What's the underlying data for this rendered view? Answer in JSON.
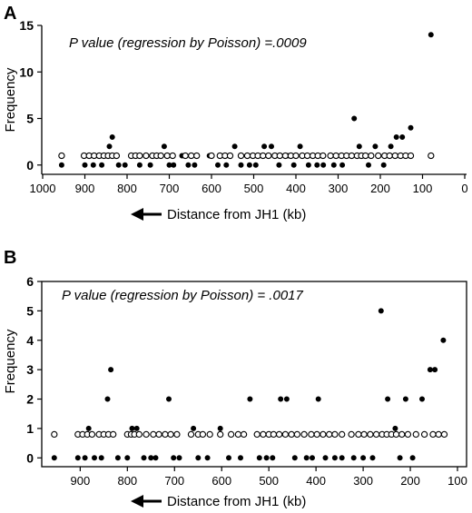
{
  "panels": [
    {
      "letter": "A",
      "annotation": "P  value (regression by Poisson) =.0009",
      "xlabel": "Distance from JH1 (kb)",
      "ylabel": "Frequency"
    },
    {
      "letter": "B",
      "annotation": "P  value (regression by Poisson) = .0017",
      "xlabel": "Distance from JH1 (kb)",
      "ylabel": "Frequency"
    }
  ],
  "chart_data": [
    {
      "type": "scatter",
      "xlabel": "Distance from JH1 (kb)",
      "ylabel": "Frequency",
      "annotation": "P  value (regression by Poisson) =.0009",
      "xlim": [
        1000,
        0
      ],
      "x_ticks": [
        1000,
        900,
        800,
        700,
        600,
        500,
        400,
        300,
        200,
        100,
        0
      ],
      "ylim": [
        -1,
        15
      ],
      "y_ticks": [
        0,
        5,
        10,
        15
      ],
      "series": [
        {
          "marker": "filled",
          "points": [
            [
              955,
              0
            ],
            [
              900,
              0
            ],
            [
              880,
              0
            ],
            [
              860,
              0
            ],
            [
              850,
              1
            ],
            [
              842,
              2
            ],
            [
              835,
              3
            ],
            [
              820,
              0
            ],
            [
              805,
              0
            ],
            [
              780,
              1
            ],
            [
              770,
              0
            ],
            [
              745,
              0
            ],
            [
              730,
              1
            ],
            [
              712,
              2
            ],
            [
              700,
              0
            ],
            [
              690,
              0
            ],
            [
              670,
              1
            ],
            [
              655,
              0
            ],
            [
              640,
              0
            ],
            [
              605,
              1
            ],
            [
              585,
              0
            ],
            [
              565,
              0
            ],
            [
              545,
              2
            ],
            [
              530,
              0
            ],
            [
              510,
              0
            ],
            [
              495,
              0
            ],
            [
              475,
              2
            ],
            [
              458,
              2
            ],
            [
              440,
              0
            ],
            [
              420,
              1
            ],
            [
              405,
              0
            ],
            [
              390,
              2
            ],
            [
              370,
              0
            ],
            [
              350,
              0
            ],
            [
              335,
              0
            ],
            [
              310,
              0
            ],
            [
              290,
              0
            ],
            [
              262,
              5
            ],
            [
              250,
              2
            ],
            [
              240,
              1
            ],
            [
              228,
              0
            ],
            [
              212,
              2
            ],
            [
              192,
              0
            ],
            [
              175,
              2
            ],
            [
              162,
              3
            ],
            [
              148,
              3
            ],
            [
              128,
              4
            ],
            [
              80,
              14
            ]
          ]
        },
        {
          "marker": "open",
          "points": [
            [
              955,
              1
            ],
            [
              902,
              1
            ],
            [
              890,
              1
            ],
            [
              878,
              1
            ],
            [
              866,
              1
            ],
            [
              855,
              1
            ],
            [
              845,
              1
            ],
            [
              835,
              1
            ],
            [
              825,
              1
            ],
            [
              790,
              1
            ],
            [
              780,
              1
            ],
            [
              770,
              1
            ],
            [
              755,
              1
            ],
            [
              740,
              1
            ],
            [
              730,
              1
            ],
            [
              720,
              1
            ],
            [
              705,
              1
            ],
            [
              692,
              1
            ],
            [
              662,
              1
            ],
            [
              648,
              1
            ],
            [
              635,
              1
            ],
            [
              600,
              1
            ],
            [
              580,
              1
            ],
            [
              568,
              1
            ],
            [
              556,
              1
            ],
            [
              530,
              1
            ],
            [
              515,
              1
            ],
            [
              502,
              1
            ],
            [
              490,
              1
            ],
            [
              478,
              1
            ],
            [
              465,
              1
            ],
            [
              450,
              1
            ],
            [
              438,
              1
            ],
            [
              425,
              1
            ],
            [
              412,
              1
            ],
            [
              400,
              1
            ],
            [
              385,
              1
            ],
            [
              373,
              1
            ],
            [
              360,
              1
            ],
            [
              348,
              1
            ],
            [
              336,
              1
            ],
            [
              318,
              1
            ],
            [
              305,
              1
            ],
            [
              292,
              1
            ],
            [
              280,
              1
            ],
            [
              268,
              1
            ],
            [
              255,
              1
            ],
            [
              245,
              1
            ],
            [
              235,
              1
            ],
            [
              222,
              1
            ],
            [
              205,
              1
            ],
            [
              190,
              1
            ],
            [
              178,
              1
            ],
            [
              165,
              1
            ],
            [
              152,
              1
            ],
            [
              140,
              1
            ],
            [
              128,
              1
            ],
            [
              80,
              1
            ]
          ]
        }
      ]
    },
    {
      "type": "scatter",
      "xlabel": "Distance from JH1 (kb)",
      "ylabel": "Frequency",
      "annotation": "P  value (regression by Poisson) = .0017",
      "xlim": [
        970,
        100
      ],
      "x_ticks": [
        900,
        800,
        700,
        600,
        500,
        400,
        300,
        200,
        100
      ],
      "ylim": [
        -0.3,
        6
      ],
      "y_ticks": [
        0,
        1,
        2,
        3,
        4,
        5,
        6
      ],
      "series": [
        {
          "marker": "filled",
          "points": [
            [
              955,
              0
            ],
            [
              905,
              0
            ],
            [
              890,
              0
            ],
            [
              882,
              1
            ],
            [
              870,
              0
            ],
            [
              855,
              0
            ],
            [
              842,
              2
            ],
            [
              835,
              3
            ],
            [
              820,
              0
            ],
            [
              800,
              0
            ],
            [
              790,
              1
            ],
            [
              780,
              1
            ],
            [
              765,
              0
            ],
            [
              750,
              0
            ],
            [
              740,
              0
            ],
            [
              712,
              2
            ],
            [
              702,
              0
            ],
            [
              690,
              0
            ],
            [
              660,
              1
            ],
            [
              650,
              0
            ],
            [
              630,
              0
            ],
            [
              603,
              1
            ],
            [
              585,
              0
            ],
            [
              560,
              0
            ],
            [
              540,
              2
            ],
            [
              520,
              0
            ],
            [
              505,
              0
            ],
            [
              492,
              0
            ],
            [
              475,
              2
            ],
            [
              462,
              2
            ],
            [
              445,
              0
            ],
            [
              420,
              0
            ],
            [
              408,
              0
            ],
            [
              395,
              2
            ],
            [
              380,
              0
            ],
            [
              360,
              0
            ],
            [
              345,
              0
            ],
            [
              320,
              0
            ],
            [
              300,
              0
            ],
            [
              280,
              0
            ],
            [
              262,
              5
            ],
            [
              248,
              2
            ],
            [
              232,
              1
            ],
            [
              222,
              0
            ],
            [
              210,
              2
            ],
            [
              195,
              0
            ],
            [
              175,
              2
            ],
            [
              158,
              3
            ],
            [
              148,
              3
            ],
            [
              130,
              4
            ]
          ]
        },
        {
          "marker": "open",
          "points": [
            [
              955,
              0.8
            ],
            [
              905,
              0.8
            ],
            [
              895,
              0.8
            ],
            [
              885,
              0.8
            ],
            [
              875,
              0.8
            ],
            [
              860,
              0.8
            ],
            [
              850,
              0.8
            ],
            [
              840,
              0.8
            ],
            [
              830,
              0.8
            ],
            [
              800,
              0.8
            ],
            [
              792,
              0.8
            ],
            [
              785,
              0.8
            ],
            [
              775,
              0.8
            ],
            [
              760,
              0.8
            ],
            [
              745,
              0.8
            ],
            [
              733,
              0.8
            ],
            [
              720,
              0.8
            ],
            [
              708,
              0.8
            ],
            [
              695,
              0.8
            ],
            [
              665,
              0.8
            ],
            [
              650,
              0.8
            ],
            [
              640,
              0.8
            ],
            [
              625,
              0.8
            ],
            [
              603,
              0.8
            ],
            [
              580,
              0.8
            ],
            [
              565,
              0.8
            ],
            [
              553,
              0.8
            ],
            [
              525,
              0.8
            ],
            [
              512,
              0.8
            ],
            [
              500,
              0.8
            ],
            [
              490,
              0.8
            ],
            [
              478,
              0.8
            ],
            [
              465,
              0.8
            ],
            [
              452,
              0.8
            ],
            [
              440,
              0.8
            ],
            [
              425,
              0.8
            ],
            [
              410,
              0.8
            ],
            [
              398,
              0.8
            ],
            [
              385,
              0.8
            ],
            [
              372,
              0.8
            ],
            [
              360,
              0.8
            ],
            [
              345,
              0.8
            ],
            [
              325,
              0.8
            ],
            [
              310,
              0.8
            ],
            [
              298,
              0.8
            ],
            [
              285,
              0.8
            ],
            [
              272,
              0.8
            ],
            [
              260,
              0.8
            ],
            [
              250,
              0.8
            ],
            [
              240,
              0.8
            ],
            [
              230,
              0.8
            ],
            [
              218,
              0.8
            ],
            [
              205,
              0.8
            ],
            [
              188,
              0.8
            ],
            [
              170,
              0.8
            ],
            [
              152,
              0.8
            ],
            [
              140,
              0.8
            ],
            [
              128,
              0.8
            ]
          ]
        }
      ]
    }
  ]
}
